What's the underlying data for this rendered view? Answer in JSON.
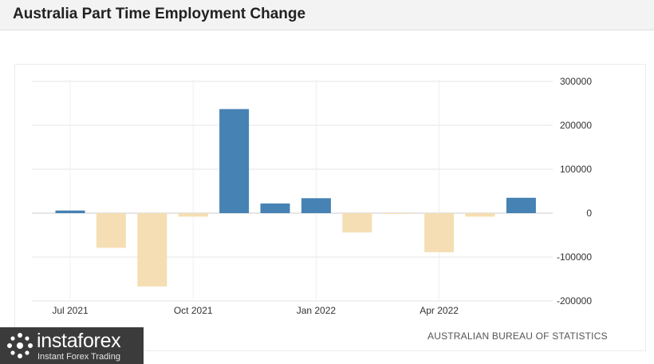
{
  "header": {
    "title": "Australia Part Time Employment Change"
  },
  "source": "AUSTRALIAN BUREAU OF STATISTICS",
  "logo": {
    "name": "instaforex",
    "tagline": "Instant Forex Trading"
  },
  "colors": {
    "positive": "#4682b4",
    "negative": "#f5deb3",
    "grid": "#e6e6e6"
  },
  "chart_data": {
    "type": "bar",
    "title": "Australia Part Time Employment Change",
    "categories": [
      "Jul 2021",
      "Aug 2021",
      "Sep 2021",
      "Oct 2021",
      "Nov 2021",
      "Dec 2021",
      "Jan 2022",
      "Feb 2022",
      "Mar 2022",
      "Apr 2022",
      "May 2022",
      "Jun 2022"
    ],
    "values": [
      6000,
      -79000,
      -167000,
      -8000,
      237000,
      22000,
      34000,
      -44000,
      -1000,
      -89000,
      -8000,
      35000
    ],
    "x_tick_labels": [
      "Jul 2021",
      "Oct 2021",
      "Jan 2022",
      "Apr 2022"
    ],
    "y_ticks": [
      300000,
      200000,
      100000,
      0,
      -100000,
      -200000
    ],
    "ylim": [
      -200000,
      300000
    ],
    "xlabel": "",
    "ylabel": "",
    "grid": true,
    "legend": "none"
  }
}
